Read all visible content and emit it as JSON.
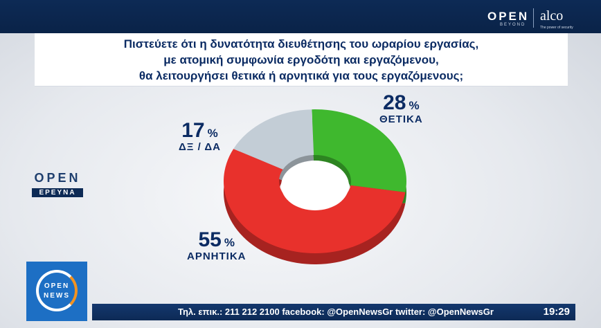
{
  "header": {
    "brand_open": "OPEN",
    "brand_sub": "BEYOND",
    "brand_alco": "alco",
    "brand_alco_sub": "The power of security"
  },
  "title_lines": [
    "Πιστεύετε ότι η δυνατότητα διευθέτησης του ωραρίου εργασίας,",
    "με ατομική συμφωνία εργοδότη και εργαζόμενου,",
    "θα λειτουργήσει θετικά ή αρνητικά για τους εργαζόμενους;"
  ],
  "chart_data": {
    "type": "pie",
    "variant": "donut-3d",
    "categories": [
      "ΘΕΤΙΚΑ",
      "ΑΡΝΗΤΙΚΑ",
      "ΔΞ / ΔΑ"
    ],
    "values": [
      28,
      55,
      17
    ],
    "unit": "%",
    "colors": [
      "#3fb82e",
      "#e8312c",
      "#c3cdd6"
    ]
  },
  "labels": {
    "positive": {
      "value": "28",
      "sign": "%",
      "label": "ΘΕΤΙΚΑ"
    },
    "negative": {
      "value": "55",
      "sign": "%",
      "label": "ΑΡΝΗΤΙΚΑ"
    },
    "dk": {
      "value": "17",
      "sign": "%",
      "label": "ΔΞ / ΔΑ"
    }
  },
  "left_logo": {
    "open": "OPEN",
    "research": "ΕΡΕΥΝΑ"
  },
  "news_logo": {
    "line1": "OPEN",
    "line2": "NEWS"
  },
  "ticker": {
    "text": "Τηλ. επικ.: 211 212 2100 facebook: @OpenNewsGr twitter: @OpenNewsGr",
    "clock": "19:29"
  }
}
